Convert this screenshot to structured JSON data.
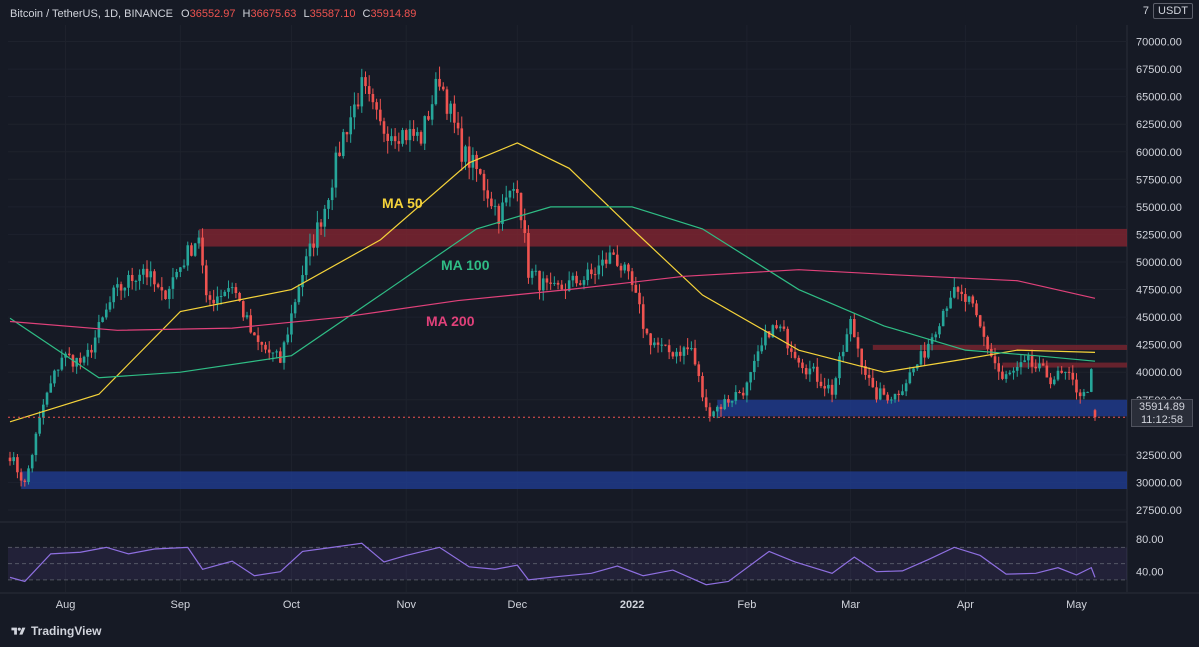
{
  "header": {
    "symbol": "Bitcoin / TetherUS, 1D, BINANCE",
    "open_k": "O",
    "open_v": "36552.97",
    "high_k": "H",
    "high_v": "36675.63",
    "low_k": "L",
    "low_v": "35587.10",
    "close_k": "C",
    "close_v": "35914.89"
  },
  "currency": {
    "prefix": "7",
    "label": "USDT"
  },
  "last_price": {
    "price": "35914.89",
    "countdown": "11:12:58"
  },
  "brand": {
    "name": "TradingView"
  },
  "colors": {
    "background": "#161a25",
    "up": "#26a69a",
    "down": "#ef5350",
    "ma50": "#f5d33a",
    "ma100": "#2fbd85",
    "ma200": "#e0417a",
    "resistance_zone": "#7b2430",
    "support_zone": "#1f3a8a",
    "rsi": "#8e6fe0"
  },
  "chart_data": [
    {
      "type": "candlestick",
      "title": "Bitcoin / TetherUS, 1D, BINANCE",
      "x_labels": [
        "Aug",
        "Sep",
        "Oct",
        "Nov",
        "Dec",
        "2022",
        "Feb",
        "Mar",
        "Apr",
        "May"
      ],
      "y_ticks": [
        "70000.00",
        "67500.00",
        "65000.00",
        "62500.00",
        "60000.00",
        "57500.00",
        "55000.00",
        "52500.00",
        "50000.00",
        "47500.00",
        "45000.00",
        "42500.00",
        "40000.00",
        "37500.00",
        "32500.00",
        "30000.00",
        "27500.00"
      ],
      "ylim": [
        26500,
        71500
      ],
      "date_range": [
        "2021-07-17",
        "2022-05-06"
      ],
      "close_anchors": [
        [
          "2021-07-17",
          32500
        ],
        [
          "2021-07-21",
          29800
        ],
        [
          "2021-07-26",
          37000
        ],
        [
          "2021-07-31",
          41500
        ],
        [
          "2021-08-06",
          40800
        ],
        [
          "2021-08-14",
          47000
        ],
        [
          "2021-08-22",
          49500
        ],
        [
          "2021-08-27",
          46800
        ],
        [
          "2021-09-06",
          52500
        ],
        [
          "2021-09-08",
          46300
        ],
        [
          "2021-09-15",
          48000
        ],
        [
          "2021-09-21",
          42800
        ],
        [
          "2021-09-28",
          41000
        ],
        [
          "2021-10-03",
          48000
        ],
        [
          "2021-10-10",
          55000
        ],
        [
          "2021-10-15",
          61500
        ],
        [
          "2021-10-20",
          65800
        ],
        [
          "2021-10-25",
          62200
        ],
        [
          "2021-10-30",
          61800
        ],
        [
          "2021-11-05",
          61300
        ],
        [
          "2021-11-10",
          66800
        ],
        [
          "2021-11-16",
          60100
        ],
        [
          "2021-11-20",
          58300
        ],
        [
          "2021-11-26",
          54300
        ],
        [
          "2021-12-01",
          57200
        ],
        [
          "2021-12-04",
          49200
        ],
        [
          "2021-12-10",
          47200
        ],
        [
          "2021-12-16",
          48100
        ],
        [
          "2021-12-21",
          48800
        ],
        [
          "2021-12-27",
          50800
        ],
        [
          "2022-01-01",
          47700
        ],
        [
          "2022-01-05",
          43300
        ],
        [
          "2022-01-10",
          41800
        ],
        [
          "2022-01-17",
          42100
        ],
        [
          "2022-01-21",
          36500
        ],
        [
          "2022-01-24",
          36800
        ],
        [
          "2022-02-01",
          38700
        ],
        [
          "2022-02-07",
          43900
        ],
        [
          "2022-02-10",
          43800
        ],
        [
          "2022-02-17",
          40500
        ],
        [
          "2022-02-24",
          38300
        ],
        [
          "2022-03-01",
          44400
        ],
        [
          "2022-03-07",
          38000
        ],
        [
          "2022-03-13",
          37900
        ],
        [
          "2022-03-20",
          41200
        ],
        [
          "2022-03-28",
          47200
        ],
        [
          "2022-04-02",
          46300
        ],
        [
          "2022-04-06",
          43100
        ],
        [
          "2022-04-11",
          39300
        ],
        [
          "2022-04-18",
          40800
        ],
        [
          "2022-04-24",
          39500
        ],
        [
          "2022-04-28",
          39700
        ],
        [
          "2022-05-03",
          37800
        ],
        [
          "2022-05-05",
          39700
        ],
        [
          "2022-05-06",
          35914.89
        ]
      ],
      "ohlc_last": {
        "open": 36552.97,
        "high": 36675.63,
        "low": 35587.1,
        "close": 35914.89
      },
      "moving_averages": [
        {
          "name": "MA 50",
          "points": [
            [
              "2021-07-17",
              35500
            ],
            [
              "2021-08-10",
              38000
            ],
            [
              "2021-09-01",
              45500
            ],
            [
              "2021-10-01",
              47500
            ],
            [
              "2021-10-25",
              52000
            ],
            [
              "2021-11-18",
              59000
            ],
            [
              "2021-12-01",
              60800
            ],
            [
              "2021-12-15",
              58500
            ],
            [
              "2022-01-01",
              53000
            ],
            [
              "2022-01-20",
              47000
            ],
            [
              "2022-02-15",
              42000
            ],
            [
              "2022-03-10",
              40000
            ],
            [
              "2022-04-01",
              41200
            ],
            [
              "2022-04-15",
              42000
            ],
            [
              "2022-05-06",
              41800
            ]
          ]
        },
        {
          "name": "MA 100",
          "points": [
            [
              "2021-07-17",
              44900
            ],
            [
              "2021-08-10",
              39500
            ],
            [
              "2021-09-01",
              40000
            ],
            [
              "2021-10-01",
              41500
            ],
            [
              "2021-10-25",
              47000
            ],
            [
              "2021-11-20",
              53000
            ],
            [
              "2021-12-10",
              55000
            ],
            [
              "2022-01-01",
              55000
            ],
            [
              "2022-01-20",
              53000
            ],
            [
              "2022-02-15",
              47500
            ],
            [
              "2022-03-10",
              44200
            ],
            [
              "2022-04-01",
              42000
            ],
            [
              "2022-04-20",
              41500
            ],
            [
              "2022-05-06",
              41000
            ]
          ]
        },
        {
          "name": "MA 200",
          "points": [
            [
              "2021-07-17",
              44600
            ],
            [
              "2021-08-15",
              43800
            ],
            [
              "2021-09-15",
              44000
            ],
            [
              "2021-10-15",
              45000
            ],
            [
              "2021-11-15",
              46500
            ],
            [
              "2021-12-15",
              47500
            ],
            [
              "2022-01-15",
              48700
            ],
            [
              "2022-02-15",
              49300
            ],
            [
              "2022-03-15",
              48800
            ],
            [
              "2022-04-15",
              48300
            ],
            [
              "2022-05-06",
              46700
            ]
          ]
        }
      ],
      "zones": [
        {
          "kind": "resistance",
          "from": "2021-09-06",
          "low": 51400,
          "high": 53000
        },
        {
          "kind": "support",
          "from": "2022-01-24",
          "low": 36000,
          "high": 37500
        },
        {
          "kind": "support",
          "from": "2021-07-20",
          "low": 29400,
          "high": 31000
        }
      ],
      "level_lines": [
        {
          "from": "2022-03-07",
          "price": 42200
        },
        {
          "from": "2022-04-11",
          "price": 40600
        }
      ]
    },
    {
      "type": "line",
      "title": "RSI",
      "y_ticks": [
        "80.00",
        "40.00"
      ],
      "ylim": [
        15,
        100
      ],
      "bands": [
        70,
        50,
        30
      ],
      "points": [
        [
          "2021-07-17",
          33
        ],
        [
          "2021-07-21",
          28
        ],
        [
          "2021-07-28",
          62
        ],
        [
          "2021-08-05",
          64
        ],
        [
          "2021-08-12",
          70
        ],
        [
          "2021-08-18",
          62
        ],
        [
          "2021-08-25",
          68
        ],
        [
          "2021-09-03",
          70
        ],
        [
          "2021-09-07",
          43
        ],
        [
          "2021-09-15",
          53
        ],
        [
          "2021-09-21",
          35
        ],
        [
          "2021-09-28",
          40
        ],
        [
          "2021-10-04",
          65
        ],
        [
          "2021-10-12",
          70
        ],
        [
          "2021-10-20",
          75
        ],
        [
          "2021-10-26",
          52
        ],
        [
          "2021-11-01",
          60
        ],
        [
          "2021-11-10",
          70
        ],
        [
          "2021-11-18",
          46
        ],
        [
          "2021-11-25",
          43
        ],
        [
          "2021-12-01",
          48
        ],
        [
          "2021-12-04",
          30
        ],
        [
          "2021-12-12",
          34
        ],
        [
          "2021-12-21",
          38
        ],
        [
          "2021-12-28",
          47
        ],
        [
          "2022-01-04",
          35
        ],
        [
          "2022-01-12",
          42
        ],
        [
          "2022-01-21",
          24
        ],
        [
          "2022-01-27",
          28
        ],
        [
          "2022-02-07",
          65
        ],
        [
          "2022-02-14",
          52
        ],
        [
          "2022-02-24",
          38
        ],
        [
          "2022-03-02",
          58
        ],
        [
          "2022-03-08",
          40
        ],
        [
          "2022-03-15",
          41
        ],
        [
          "2022-03-22",
          55
        ],
        [
          "2022-03-29",
          70
        ],
        [
          "2022-04-05",
          60
        ],
        [
          "2022-04-12",
          37
        ],
        [
          "2022-04-20",
          38
        ],
        [
          "2022-04-26",
          45
        ],
        [
          "2022-05-01",
          36
        ],
        [
          "2022-05-05",
          45
        ],
        [
          "2022-05-06",
          33
        ]
      ]
    }
  ],
  "annotations": [
    {
      "text": "MA 50",
      "color": "#f5d33a"
    },
    {
      "text": "MA 100",
      "color": "#2fbd85"
    },
    {
      "text": "MA 200",
      "color": "#e0417a"
    }
  ]
}
